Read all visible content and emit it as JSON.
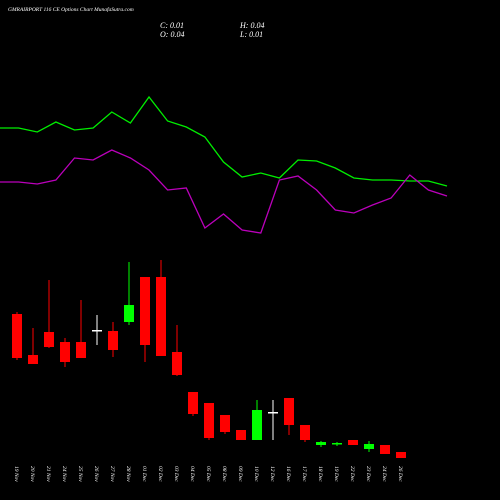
{
  "chart_data": {
    "type": "candlestick",
    "title": "GMRAIRPORT 116 CE Options Chart MunafaSutra.com",
    "stats": {
      "close": "C: 0.01",
      "high": "H: 0.04",
      "open": "O: 0.04",
      "low": "L: 0.01"
    },
    "categories": [
      "19 Nov",
      "20 Nov",
      "21 Nov",
      "24 Nov",
      "25 Nov",
      "26 Nov",
      "27 Nov",
      "28 Nov",
      "01 Dec",
      "02 Dec",
      "03 Dec",
      "04 Dec",
      "05 Dec",
      "08 Dec",
      "09 Dec",
      "10 Dec",
      "12 Dec",
      "16 Dec",
      "17 Dec",
      "18 Dec",
      "19 Dec",
      "22 Dec",
      "23 Dec",
      "24 Dec",
      "26 Dec"
    ],
    "open": [
      73,
      52.5,
      64,
      59,
      59,
      65,
      64.5,
      69,
      91.5,
      91.5,
      54,
      34,
      28.5,
      22.5,
      15,
      10,
      24,
      31,
      17.5,
      7.5,
      8,
      10,
      5.5,
      7.5,
      4
    ],
    "high": [
      74,
      66,
      90,
      61,
      80,
      72.5,
      69,
      99,
      91.5,
      100,
      67.5,
      34,
      28.5,
      22.5,
      15,
      30,
      30,
      31,
      17.5,
      9.5,
      9,
      10,
      9.5,
      7.5,
      4
    ],
    "low": [
      50,
      48,
      56,
      46.5,
      51,
      57.5,
      51.5,
      67.5,
      49,
      52,
      42,
      22,
      10,
      13,
      10,
      10,
      10,
      12.5,
      9,
      6.5,
      7,
      7.5,
      4,
      3,
      1
    ],
    "close": [
      51,
      48,
      56.5,
      49,
      51,
      65,
      55,
      77.5,
      57.5,
      52,
      42.5,
      23,
      11,
      14,
      10,
      25,
      24,
      17.5,
      10,
      9,
      8.5,
      7.5,
      8,
      3,
      1
    ],
    "ylim": [
      0,
      100
    ],
    "up_color": "#00ff00",
    "down_color": "#ff0000",
    "flat_color": "#ffffff",
    "lines": [
      {
        "color": "#00ee00",
        "values": [
          71,
          71,
          69,
          74,
          70,
          71,
          79,
          73.5,
          86.5,
          74.5,
          71.5,
          66.5,
          54,
          46.5,
          48.5,
          46,
          55,
          54.5,
          51,
          46,
          45,
          45,
          44.5,
          44.5,
          42
        ]
      },
      {
        "color": "#bb00bb",
        "values": [
          44,
          44,
          43,
          45,
          56,
          55,
          60,
          56,
          50,
          40,
          41,
          21,
          28,
          20,
          18.5,
          45,
          47,
          40,
          30,
          28.5,
          32.5,
          36,
          47.5,
          40,
          37
        ]
      }
    ],
    "line_ylim": [
      0,
      100
    ]
  }
}
